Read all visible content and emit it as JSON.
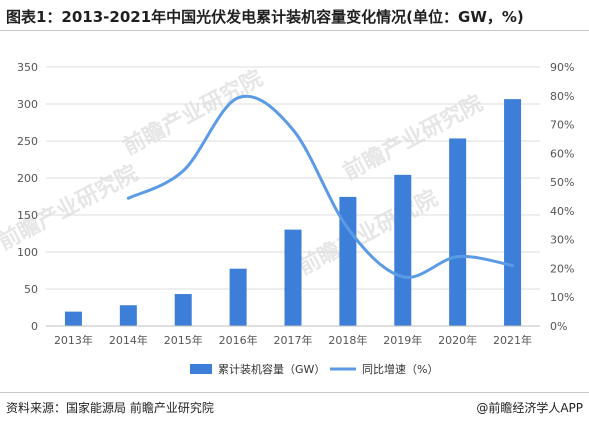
{
  "title": "图表1：2013-2021年中国光伏发电累计装机容量变化情况(单位：GW，%)",
  "watermark": "前瞻产业研究院",
  "source": "资料来源：国家能源局 前瞻产业研究院",
  "brand": "@前瞻经济学人APP",
  "colors": {
    "bar": "#3d7fd8",
    "line": "#5b9be6",
    "grid": "#dcdcdc",
    "text": "#555555"
  },
  "chart_data": {
    "type": "bar",
    "categories": [
      "2013年",
      "2014年",
      "2015年",
      "2016年",
      "2017年",
      "2018年",
      "2019年",
      "2020年",
      "2021年"
    ],
    "series": [
      {
        "name": "累计装机容量（GW）",
        "type": "bar",
        "axis": "left",
        "values": [
          19.42,
          28.05,
          43.18,
          77.42,
          130.25,
          174.46,
          204.3,
          253.43,
          306.56
        ]
      },
      {
        "name": "同比增速（%）",
        "type": "line",
        "axis": "right",
        "values": [
          null,
          44.4,
          53.9,
          79.3,
          68.2,
          33.9,
          17.1,
          24.1,
          21.0
        ]
      }
    ],
    "ylim_left": [
      0,
      350
    ],
    "yticks_left": [
      "0",
      "50",
      "100",
      "150",
      "200",
      "250",
      "300",
      "350"
    ],
    "ylim_right": [
      0,
      90
    ],
    "yticks_right": [
      "0%",
      "10%",
      "20%",
      "30%",
      "40%",
      "50%",
      "60%",
      "70%",
      "80%",
      "90%"
    ],
    "grid": "horizontal",
    "legend": "bottom"
  }
}
